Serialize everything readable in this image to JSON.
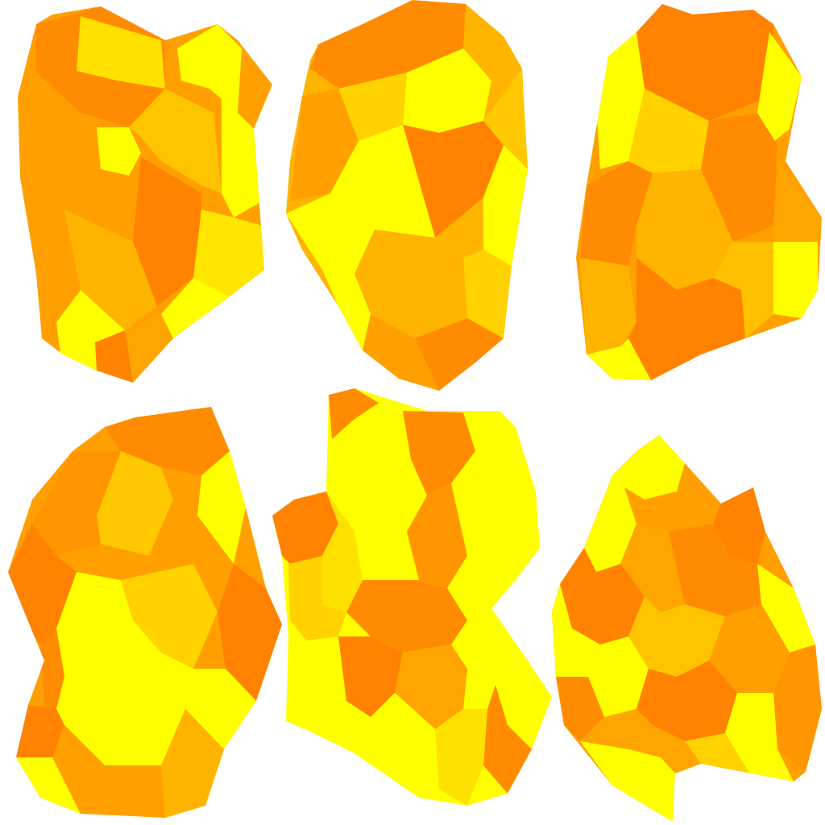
{
  "palette": {
    "background": "#ffffff",
    "yellow": "#ffff00",
    "gold": "#ffd200",
    "amber": "#ffb400",
    "orange_light": "#ffa000",
    "orange_dark": "#ff8200"
  },
  "crystals": [
    {
      "id": "crystal-1",
      "texture": "voronoi"
    },
    {
      "id": "crystal-2",
      "texture": "voronoi"
    },
    {
      "id": "crystal-3",
      "texture": "voronoi"
    },
    {
      "id": "crystal-4",
      "texture": "voronoi"
    },
    {
      "id": "crystal-5",
      "texture": "voronoi"
    },
    {
      "id": "crystal-6",
      "texture": "voronoi"
    }
  ]
}
